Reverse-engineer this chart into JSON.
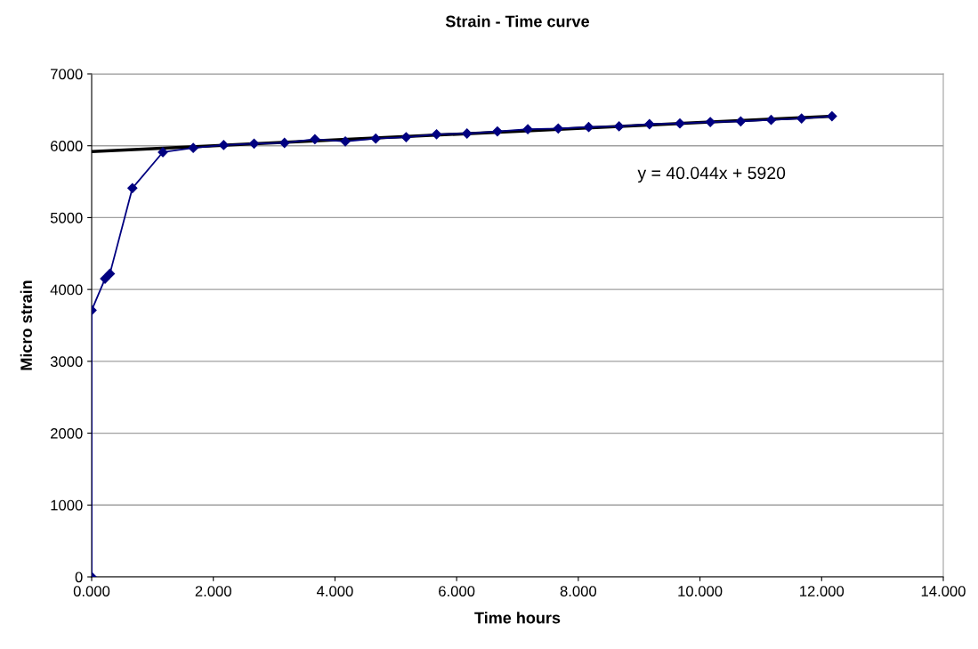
{
  "chart_data": {
    "type": "line",
    "title": "Strain - Time curve",
    "xlabel": "Time hours",
    "ylabel": "Micro strain",
    "xlim": [
      0,
      14
    ],
    "xticks": [
      {
        "value": 0,
        "label": "0.000"
      },
      {
        "value": 2,
        "label": "2.000"
      },
      {
        "value": 4,
        "label": "4.000"
      },
      {
        "value": 6,
        "label": "6.000"
      },
      {
        "value": 8,
        "label": "8.000"
      },
      {
        "value": 10,
        "label": "10.000"
      },
      {
        "value": 12,
        "label": "12.000"
      },
      {
        "value": 14,
        "label": "14.000"
      }
    ],
    "ylim": [
      0,
      7000
    ],
    "yticks": [
      0,
      1000,
      2000,
      3000,
      4000,
      5000,
      6000,
      7000
    ],
    "grid": "y",
    "legend": false,
    "series": [
      {
        "color": "#000080",
        "marker": "diamond",
        "x": [
          0,
          0,
          0.22,
          0.3,
          0.67,
          1.17,
          1.67,
          2.17,
          2.67,
          3.17,
          3.67,
          4.17,
          4.67,
          5.17,
          5.67,
          6.17,
          6.67,
          7.17,
          7.67,
          8.17,
          8.67,
          9.17,
          9.67,
          10.17,
          10.67,
          11.17,
          11.67,
          12.17
        ],
        "values": [
          0,
          3710,
          4150,
          4220,
          5410,
          5910,
          5970,
          6010,
          6030,
          6040,
          6090,
          6060,
          6100,
          6120,
          6160,
          6170,
          6200,
          6230,
          6240,
          6260,
          6270,
          6300,
          6310,
          6330,
          6340,
          6360,
          6380,
          6410
        ]
      },
      {
        "color": "#000000",
        "marker": "none",
        "x": [
          0,
          12.17
        ],
        "values": [
          5920,
          6410
        ]
      }
    ],
    "annotations": [
      "y = 40.044x + 5920"
    ]
  }
}
